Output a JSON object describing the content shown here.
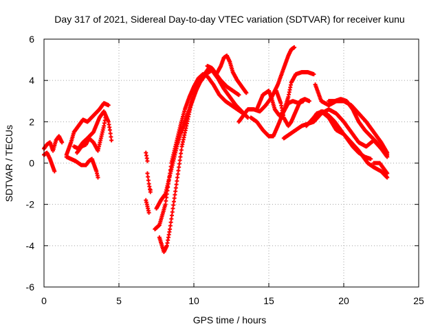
{
  "chart_data": {
    "type": "scatter",
    "title": "Day 317 of 2021, Sidereal Day-to-day VTEC variation (SDTVAR) for receiver kunu",
    "xlabel": "GPS time / hours",
    "ylabel": "SDTVAR / TECUs",
    "xlim": [
      0,
      25
    ],
    "ylim": [
      -6,
      6
    ],
    "xticks": [
      0,
      5,
      10,
      15,
      20,
      25
    ],
    "yticks": [
      -6,
      -4,
      -2,
      0,
      2,
      4,
      6
    ],
    "grid": true,
    "legend": "none",
    "marker": "+",
    "color": "#ff0000",
    "series": [
      {
        "points": [
          [
            0.0,
            0.7
          ],
          [
            0.2,
            0.9
          ],
          [
            0.4,
            1.0
          ],
          [
            0.6,
            0.6
          ],
          [
            0.8,
            1.1
          ],
          [
            1.0,
            1.3
          ],
          [
            1.2,
            1.0
          ]
        ]
      },
      {
        "points": [
          [
            0.0,
            0.4
          ],
          [
            0.2,
            0.5
          ],
          [
            0.4,
            0.2
          ],
          [
            0.5,
            0.0
          ],
          [
            0.6,
            -0.2
          ],
          [
            0.7,
            -0.4
          ]
        ]
      },
      {
        "points": [
          [
            1.5,
            0.4
          ],
          [
            1.8,
            1.0
          ],
          [
            2.0,
            1.5
          ],
          [
            2.3,
            1.8
          ],
          [
            2.6,
            2.1
          ],
          [
            2.9,
            2.0
          ],
          [
            3.3,
            2.3
          ],
          [
            3.7,
            2.6
          ],
          [
            4.0,
            2.9
          ],
          [
            4.3,
            2.8
          ]
        ]
      },
      {
        "points": [
          [
            1.5,
            0.3
          ],
          [
            1.8,
            0.2
          ],
          [
            2.1,
            0.1
          ],
          [
            2.5,
            -0.1
          ],
          [
            2.8,
            -0.1
          ],
          [
            3.0,
            0.1
          ],
          [
            3.2,
            0.2
          ],
          [
            3.5,
            -0.4
          ],
          [
            3.6,
            -0.7
          ]
        ]
      },
      {
        "points": [
          [
            2.0,
            0.8
          ],
          [
            2.3,
            0.7
          ],
          [
            2.6,
            1.0
          ],
          [
            2.9,
            1.2
          ],
          [
            3.3,
            1.5
          ],
          [
            3.7,
            2.2
          ],
          [
            4.0,
            2.5
          ],
          [
            4.3,
            2.0
          ],
          [
            4.4,
            1.6
          ],
          [
            4.5,
            1.1
          ]
        ]
      },
      {
        "points": [
          [
            2.2,
            0.5
          ],
          [
            2.5,
            0.8
          ],
          [
            2.8,
            0.9
          ],
          [
            3.0,
            1.2
          ],
          [
            3.3,
            1.0
          ],
          [
            3.6,
            0.6
          ],
          [
            3.8,
            1.2
          ],
          [
            4.0,
            1.8
          ],
          [
            4.1,
            2.2
          ]
        ]
      },
      {
        "points": [
          [
            6.8,
            0.5
          ],
          [
            6.9,
            0.1
          ],
          [
            6.9,
            -0.5
          ],
          [
            7.0,
            -1.0
          ],
          [
            7.1,
            -1.4
          ],
          [
            7.1,
            -1.3
          ]
        ]
      },
      {
        "points": [
          [
            6.8,
            -1.8
          ],
          [
            6.9,
            -2.1
          ],
          [
            7.0,
            -2.4
          ]
        ]
      },
      {
        "points": [
          [
            7.5,
            -2.2
          ],
          [
            7.8,
            -1.8
          ],
          [
            8.1,
            -1.5
          ],
          [
            8.3,
            -0.9
          ],
          [
            8.5,
            -0.3
          ],
          [
            8.7,
            0.3
          ],
          [
            8.9,
            0.9
          ],
          [
            9.1,
            1.4
          ],
          [
            9.4,
            2.0
          ],
          [
            9.7,
            2.6
          ],
          [
            10.0,
            3.3
          ],
          [
            10.4,
            3.9
          ],
          [
            10.8,
            4.3
          ],
          [
            11.2,
            4.5
          ],
          [
            11.6,
            4.1
          ],
          [
            12.0,
            3.6
          ],
          [
            12.4,
            3.2
          ],
          [
            12.8,
            2.8
          ],
          [
            13.2,
            2.5
          ],
          [
            13.6,
            2.2
          ]
        ]
      },
      {
        "points": [
          [
            7.4,
            -3.2
          ],
          [
            7.7,
            -3.0
          ],
          [
            7.9,
            -2.5
          ],
          [
            8.1,
            -2.0
          ],
          [
            8.3,
            -1.0
          ],
          [
            8.5,
            0.0
          ],
          [
            8.8,
            0.9
          ],
          [
            9.1,
            1.8
          ],
          [
            9.4,
            2.6
          ],
          [
            9.7,
            3.2
          ],
          [
            10.0,
            3.7
          ],
          [
            10.3,
            4.1
          ],
          [
            10.6,
            4.3
          ],
          [
            10.9,
            4.2
          ],
          [
            11.3,
            3.8
          ],
          [
            11.7,
            3.3
          ],
          [
            12.1,
            3.0
          ],
          [
            12.5,
            2.8
          ],
          [
            12.9,
            2.6
          ],
          [
            13.3,
            2.4
          ]
        ]
      },
      {
        "points": [
          [
            7.7,
            -3.6
          ],
          [
            8.0,
            -4.3
          ],
          [
            8.2,
            -4.0
          ],
          [
            8.4,
            -3.2
          ],
          [
            8.6,
            -2.2
          ],
          [
            8.8,
            -1.2
          ],
          [
            9.0,
            -0.2
          ],
          [
            9.2,
            0.8
          ],
          [
            9.5,
            1.8
          ],
          [
            9.8,
            2.8
          ],
          [
            10.2,
            3.6
          ],
          [
            10.6,
            4.2
          ],
          [
            11.0,
            4.6
          ],
          [
            11.4,
            4.4
          ],
          [
            11.8,
            4.0
          ],
          [
            12.2,
            3.7
          ],
          [
            12.6,
            3.5
          ],
          [
            13.0,
            3.3
          ]
        ]
      },
      {
        "points": [
          [
            10.9,
            4.7
          ],
          [
            11.2,
            4.6
          ],
          [
            11.5,
            4.3
          ],
          [
            11.8,
            4.7
          ],
          [
            12.0,
            5.1
          ],
          [
            12.2,
            5.2
          ],
          [
            12.4,
            4.9
          ],
          [
            12.6,
            4.4
          ],
          [
            12.9,
            4.0
          ],
          [
            13.2,
            3.7
          ],
          [
            13.5,
            3.4
          ]
        ]
      },
      {
        "points": [
          [
            13.0,
            2.0
          ],
          [
            13.3,
            2.3
          ],
          [
            13.6,
            2.6
          ],
          [
            14.0,
            2.6
          ],
          [
            14.4,
            2.5
          ],
          [
            14.8,
            2.8
          ],
          [
            15.2,
            3.2
          ],
          [
            15.6,
            3.8
          ],
          [
            16.0,
            4.6
          ],
          [
            16.3,
            5.2
          ],
          [
            16.5,
            5.5
          ],
          [
            16.7,
            5.6
          ]
        ]
      },
      {
        "points": [
          [
            13.8,
            2.2
          ],
          [
            14.2,
            2.0
          ],
          [
            14.6,
            1.6
          ],
          [
            15.0,
            1.3
          ],
          [
            15.3,
            1.3
          ],
          [
            15.6,
            1.8
          ],
          [
            16.0,
            2.5
          ],
          [
            16.3,
            3.2
          ],
          [
            16.5,
            3.9
          ],
          [
            16.8,
            4.3
          ],
          [
            17.2,
            4.4
          ],
          [
            17.6,
            4.4
          ],
          [
            18.0,
            4.3
          ]
        ]
      },
      {
        "points": [
          [
            14.2,
            2.6
          ],
          [
            14.6,
            3.3
          ],
          [
            15.0,
            3.5
          ],
          [
            15.2,
            3.1
          ],
          [
            15.4,
            2.6
          ],
          [
            15.7,
            2.3
          ],
          [
            16.0,
            2.5
          ],
          [
            16.3,
            2.9
          ],
          [
            16.6,
            3.0
          ],
          [
            17.0,
            2.9
          ],
          [
            17.3,
            3.0
          ]
        ]
      },
      {
        "points": [
          [
            15.5,
            3.5
          ],
          [
            15.8,
            2.9
          ],
          [
            16.0,
            2.2
          ],
          [
            16.3,
            1.8
          ],
          [
            16.5,
            2.0
          ],
          [
            16.8,
            2.5
          ],
          [
            17.1,
            3.0
          ],
          [
            17.4,
            3.1
          ],
          [
            17.7,
            3.0
          ]
        ]
      },
      {
        "points": [
          [
            16.0,
            1.2
          ],
          [
            16.4,
            1.4
          ],
          [
            16.8,
            1.6
          ],
          [
            17.2,
            1.8
          ],
          [
            17.6,
            1.9
          ],
          [
            18.0,
            2.0
          ],
          [
            18.5,
            2.4
          ],
          [
            19.0,
            2.6
          ],
          [
            19.5,
            2.4
          ],
          [
            20.0,
            2.0
          ],
          [
            20.5,
            1.5
          ],
          [
            21.0,
            1.0
          ],
          [
            21.5,
            0.8
          ],
          [
            22.0,
            1.1
          ],
          [
            22.5,
            0.7
          ],
          [
            22.9,
            0.4
          ]
        ]
      },
      {
        "points": [
          [
            17.5,
            1.8
          ],
          [
            18.0,
            2.2
          ],
          [
            18.5,
            2.5
          ],
          [
            19.0,
            2.2
          ],
          [
            19.5,
            1.6
          ],
          [
            20.0,
            1.4
          ],
          [
            20.5,
            1.0
          ],
          [
            21.0,
            0.6
          ],
          [
            21.3,
            0.3
          ],
          [
            21.6,
            0.0
          ],
          [
            22.0,
            -0.2
          ],
          [
            22.5,
            -0.4
          ],
          [
            22.9,
            -0.7
          ]
        ]
      },
      {
        "points": [
          [
            17.8,
            2.0
          ],
          [
            18.2,
            2.4
          ],
          [
            18.6,
            2.5
          ],
          [
            19.0,
            2.3
          ],
          [
            19.4,
            2.0
          ],
          [
            19.8,
            1.6
          ],
          [
            20.2,
            1.2
          ],
          [
            20.6,
            0.8
          ],
          [
            21.0,
            0.5
          ],
          [
            21.4,
            0.3
          ],
          [
            21.8,
            0.2
          ]
        ]
      },
      {
        "points": [
          [
            18.1,
            3.8
          ],
          [
            18.5,
            3.0
          ],
          [
            19.0,
            2.8
          ],
          [
            19.5,
            3.0
          ],
          [
            20.0,
            3.0
          ],
          [
            20.5,
            2.8
          ],
          [
            21.0,
            2.4
          ],
          [
            21.5,
            2.0
          ],
          [
            22.0,
            1.5
          ],
          [
            22.5,
            1.0
          ],
          [
            22.9,
            0.5
          ]
        ]
      },
      {
        "points": [
          [
            19.0,
            3.0
          ],
          [
            19.4,
            3.0
          ],
          [
            19.8,
            3.1
          ],
          [
            20.2,
            3.0
          ],
          [
            20.6,
            2.6
          ],
          [
            21.0,
            2.0
          ],
          [
            21.4,
            1.6
          ],
          [
            21.8,
            1.3
          ],
          [
            22.2,
            1.0
          ],
          [
            22.6,
            0.6
          ],
          [
            22.9,
            0.3
          ]
        ]
      },
      {
        "points": [
          [
            22.0,
            0.0
          ],
          [
            22.4,
            0.0
          ],
          [
            22.7,
            -0.3
          ],
          [
            22.9,
            -0.5
          ]
        ]
      }
    ]
  }
}
